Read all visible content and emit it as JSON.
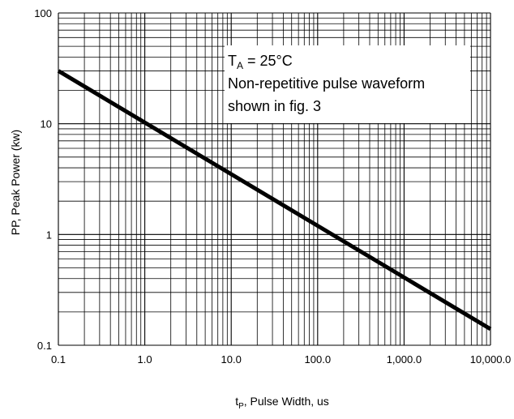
{
  "chart_data": {
    "type": "line",
    "xlabel_main": "t",
    "xlabel_sub": "P",
    "xlabel_rest": ", Pulse Width, us",
    "ylabel": "PP, Peak Power (kw)",
    "x_scale": "log",
    "y_scale": "log",
    "xlim": [
      0.1,
      10000
    ],
    "ylim": [
      0.1,
      100
    ],
    "grid": true,
    "x_ticks": [
      0.1,
      1,
      10,
      100,
      1000,
      10000
    ],
    "x_tick_labels": [
      "0.1",
      "1.0",
      "10.0",
      "100.0",
      "1,000.0",
      "10,000.0"
    ],
    "y_ticks": [
      0.1,
      1,
      10,
      100
    ],
    "y_tick_labels": [
      "0.1",
      "1",
      "10",
      "100"
    ],
    "series": [
      {
        "x": [
          0.1,
          10000
        ],
        "y": [
          30,
          0.14
        ]
      }
    ],
    "annotation": {
      "line1_main": "T",
      "line1_sub": "A",
      "line1_rest": " = 25°C",
      "line2": "Non-repetitive pulse waveform",
      "line3": "shown in fig. 3"
    }
  }
}
